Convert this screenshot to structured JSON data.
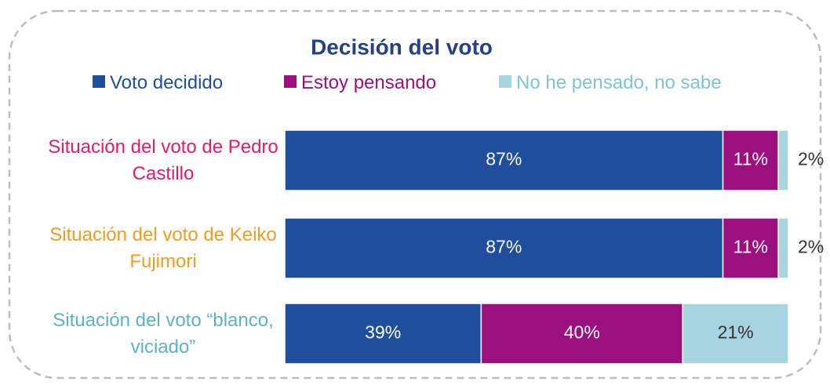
{
  "chart_data": {
    "type": "stacked_bar_horizontal",
    "title": "Decisión del voto",
    "title_color": "#24408e",
    "categories": [
      "Situación del voto de Pedro Castillo",
      "Situación del voto de Keiko Fujimori",
      "Situación del voto “blanco, viciado”"
    ],
    "category_colors": [
      "#e8196a",
      "#f29b1d",
      "#5ab4c8"
    ],
    "xlim": [
      0,
      100
    ],
    "series": [
      {
        "name": "Voto decidido",
        "color": "#1f4e9c",
        "text_color": "#1f4e9c",
        "values": [
          87,
          87,
          39
        ],
        "value_labels": [
          "87%",
          "87%",
          "39%"
        ]
      },
      {
        "name": "Estoy pensando",
        "color": "#9c0f7e",
        "text_color": "#9c0f7e",
        "values": [
          11,
          11,
          40
        ],
        "value_labels": [
          "11%",
          "11%",
          "40%"
        ]
      },
      {
        "name": "No he pensado, no sabe",
        "color": "#a8d3e0",
        "text_color": "#7fc4d6",
        "values": [
          2,
          2,
          21
        ],
        "value_labels": [
          "2%",
          "2%",
          "21%"
        ]
      }
    ]
  }
}
